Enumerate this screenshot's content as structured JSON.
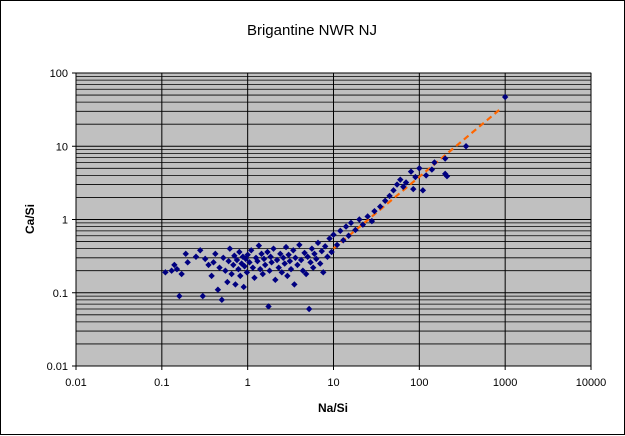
{
  "chart_data": {
    "type": "scatter",
    "title": "Brigantine NWR NJ",
    "xlabel": "Na/Si",
    "ylabel": "Ca/Si",
    "xscale": "log",
    "yscale": "log",
    "xlim": [
      0.01,
      10000
    ],
    "ylim": [
      0.01,
      100
    ],
    "x_ticks": [
      "0.01",
      "0.1",
      "1",
      "10",
      "100",
      "1000",
      "10000"
    ],
    "y_ticks": [
      "0.01",
      "0.1",
      "1",
      "10",
      "100"
    ],
    "grid": true,
    "legend": "none",
    "plot_background": "#c0c0c0",
    "marker_color": "#000080",
    "marker_shape": "diamond",
    "trendline_color": "#ff6600",
    "series": [
      {
        "points": [
          [
            0.11,
            0.19
          ],
          [
            0.13,
            0.2
          ],
          [
            0.15,
            0.21
          ],
          [
            0.16,
            0.09
          ],
          [
            0.14,
            0.24
          ],
          [
            0.17,
            0.18
          ],
          [
            0.19,
            0.34
          ],
          [
            0.2,
            0.26
          ],
          [
            0.25,
            0.31
          ],
          [
            0.28,
            0.38
          ],
          [
            0.3,
            0.09
          ],
          [
            0.32,
            0.29
          ],
          [
            0.35,
            0.24
          ],
          [
            0.38,
            0.17
          ],
          [
            0.4,
            0.26
          ],
          [
            0.42,
            0.34
          ],
          [
            0.45,
            0.11
          ],
          [
            0.47,
            0.22
          ],
          [
            0.5,
            0.08
          ],
          [
            0.52,
            0.3
          ],
          [
            0.55,
            0.2
          ],
          [
            0.58,
            0.14
          ],
          [
            0.6,
            0.27
          ],
          [
            0.62,
            0.4
          ],
          [
            0.65,
            0.18
          ],
          [
            0.68,
            0.24
          ],
          [
            0.7,
            0.32
          ],
          [
            0.72,
            0.13
          ],
          [
            0.75,
            0.28
          ],
          [
            0.78,
            0.21
          ],
          [
            0.8,
            0.36
          ],
          [
            0.82,
            0.17
          ],
          [
            0.85,
            0.25
          ],
          [
            0.88,
            0.31
          ],
          [
            0.9,
            0.12
          ],
          [
            0.92,
            0.23
          ],
          [
            0.95,
            0.29
          ],
          [
            0.98,
            0.19
          ],
          [
            1.0,
            0.33
          ],
          [
            1.05,
            0.26
          ],
          [
            1.1,
            0.38
          ],
          [
            1.15,
            0.22
          ],
          [
            1.2,
            0.16
          ],
          [
            1.25,
            0.3
          ],
          [
            1.3,
            0.27
          ],
          [
            1.35,
            0.44
          ],
          [
            1.4,
            0.21
          ],
          [
            1.45,
            0.34
          ],
          [
            1.5,
            0.18
          ],
          [
            1.55,
            0.29
          ],
          [
            1.6,
            0.24
          ],
          [
            1.7,
            0.36
          ],
          [
            1.75,
            0.065
          ],
          [
            1.8,
            0.2
          ],
          [
            1.85,
            0.31
          ],
          [
            1.9,
            0.26
          ],
          [
            2.0,
            0.4
          ],
          [
            2.1,
            0.15
          ],
          [
            2.2,
            0.28
          ],
          [
            2.3,
            0.22
          ],
          [
            2.4,
            0.34
          ],
          [
            2.5,
            0.19
          ],
          [
            2.6,
            0.3
          ],
          [
            2.7,
            0.25
          ],
          [
            2.8,
            0.42
          ],
          [
            2.9,
            0.17
          ],
          [
            3.0,
            0.33
          ],
          [
            3.1,
            0.27
          ],
          [
            3.2,
            0.21
          ],
          [
            3.4,
            0.38
          ],
          [
            3.5,
            0.13
          ],
          [
            3.6,
            0.3
          ],
          [
            3.8,
            0.24
          ],
          [
            4.0,
            0.45
          ],
          [
            4.2,
            0.28
          ],
          [
            4.4,
            0.2
          ],
          [
            4.6,
            0.35
          ],
          [
            4.8,
            0.18
          ],
          [
            5.0,
            0.31
          ],
          [
            5.2,
            0.06
          ],
          [
            5.4,
            0.26
          ],
          [
            5.6,
            0.4
          ],
          [
            5.8,
            0.22
          ],
          [
            6.0,
            0.34
          ],
          [
            6.3,
            0.29
          ],
          [
            6.6,
            0.48
          ],
          [
            7.0,
            0.25
          ],
          [
            7.3,
            0.37
          ],
          [
            7.6,
            0.19
          ],
          [
            8.0,
            0.43
          ],
          [
            8.5,
            0.31
          ],
          [
            9.0,
            0.55
          ],
          [
            9.5,
            0.36
          ],
          [
            10,
            0.62
          ],
          [
            11,
            0.45
          ],
          [
            12,
            0.7
          ],
          [
            13,
            0.52
          ],
          [
            14,
            0.8
          ],
          [
            15,
            0.6
          ],
          [
            16,
            0.9
          ],
          [
            18,
            0.72
          ],
          [
            20,
            1.0
          ],
          [
            22,
            0.85
          ],
          [
            25,
            1.1
          ],
          [
            28,
            0.95
          ],
          [
            30,
            1.3
          ],
          [
            35,
            1.5
          ],
          [
            40,
            1.8
          ],
          [
            45,
            2.1
          ],
          [
            50,
            2.5
          ],
          [
            55,
            3.0
          ],
          [
            60,
            3.5
          ],
          [
            65,
            2.8
          ],
          [
            70,
            3.2
          ],
          [
            80,
            4.5
          ],
          [
            85,
            2.6
          ],
          [
            90,
            3.8
          ],
          [
            100,
            5.0
          ],
          [
            110,
            2.5
          ],
          [
            120,
            4.0
          ],
          [
            140,
            4.8
          ],
          [
            150,
            6.0
          ],
          [
            200,
            4.2
          ],
          [
            200,
            6.8
          ],
          [
            210,
            3.9
          ],
          [
            350,
            10
          ],
          [
            1000,
            47
          ]
        ]
      }
    ],
    "trendline": [
      [
        10,
        0.4
      ],
      [
        900,
        33
      ]
    ]
  }
}
